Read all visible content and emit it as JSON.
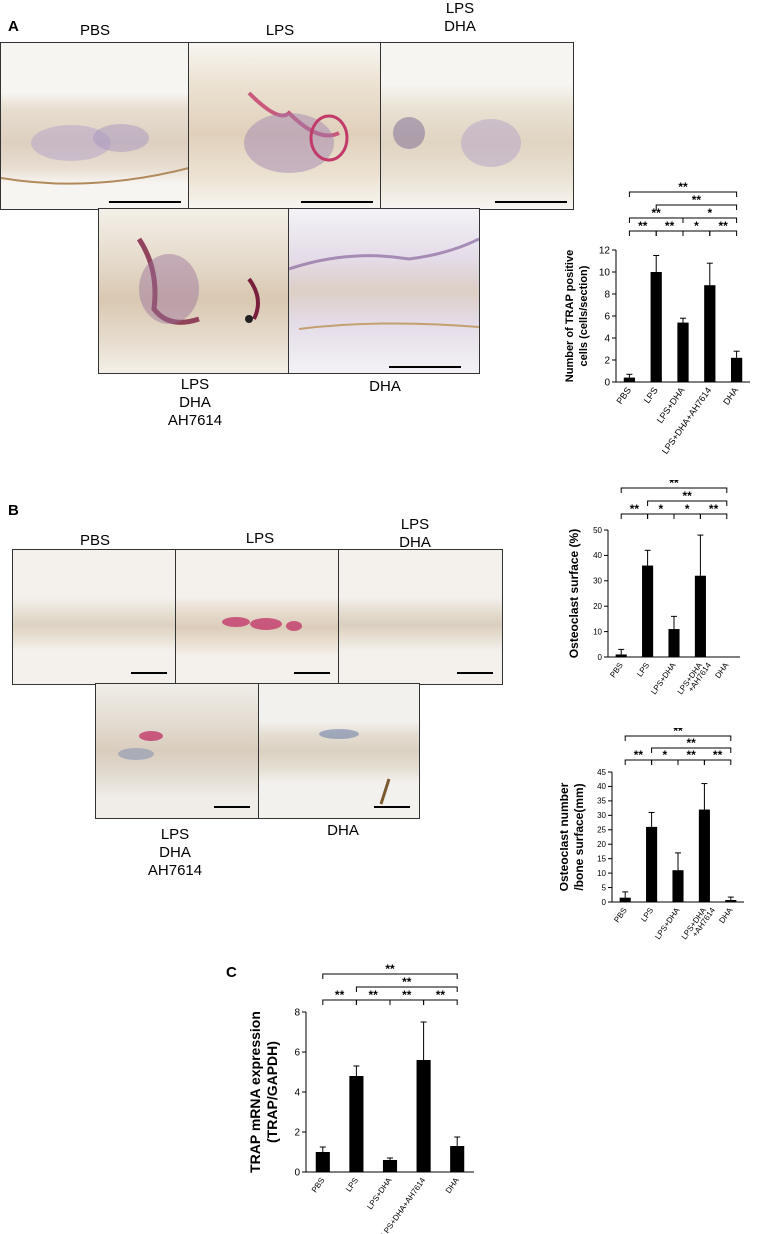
{
  "panels": {
    "A": {
      "letter": "A",
      "labels": {
        "pbs": "PBS",
        "lps": "LPS",
        "lps_dha": [
          "LPS",
          "DHA"
        ],
        "lps_dha_ah": [
          "LPS",
          "DHA",
          "AH7614"
        ],
        "dha": "DHA"
      }
    },
    "B": {
      "letter": "B",
      "labels": {
        "pbs": "PBS",
        "lps": "LPS",
        "lps_dha": [
          "LPS",
          "DHA"
        ],
        "lps_dha_ah": [
          "LPS",
          "DHA",
          "AH7614"
        ],
        "dha": "DHA"
      }
    },
    "C": {
      "letter": "C"
    }
  },
  "colors": {
    "bar": "#000000",
    "tissue": "#d8cbb8",
    "stain_pink": "#c23a6a",
    "stain_purple": "#8a6a9e"
  },
  "chart_data": [
    {
      "id": "chartA",
      "type": "bar",
      "ylabel": "Number of TRAP positive cells (cells/section)",
      "ylabel_lines": [
        "Number of TRAP positive",
        "cells (cells/section)"
      ],
      "categories": [
        "PBS",
        "LPS",
        "LPS+DHA",
        "LPS+DHA+AH7614",
        "DHA"
      ],
      "category_lines": [
        [
          "PBS"
        ],
        [
          "LPS"
        ],
        [
          "LPS+DHA"
        ],
        [
          "LPS+DHA+AH7614"
        ],
        [
          "DHA"
        ]
      ],
      "values": [
        0.4,
        10.0,
        5.4,
        8.8,
        2.2
      ],
      "errors": [
        0.3,
        1.5,
        0.4,
        2.0,
        0.6
      ],
      "ylim": [
        0,
        12
      ],
      "yticks": [
        0,
        2,
        4,
        6,
        8,
        10,
        12
      ],
      "significance": [
        {
          "from": 0,
          "to": 4,
          "label": "**",
          "level": 3
        },
        {
          "from": 1,
          "to": 4,
          "label": "**",
          "level": 2
        },
        {
          "from": 0,
          "to": 2,
          "label": "**",
          "level": 1
        },
        {
          "from": 2,
          "to": 4,
          "label": "*",
          "level": 1
        },
        {
          "from": 0,
          "to": 1,
          "label": "**",
          "level": 0
        },
        {
          "from": 1,
          "to": 2,
          "label": "**",
          "level": 0
        },
        {
          "from": 2,
          "to": 3,
          "label": "*",
          "level": 0
        },
        {
          "from": 3,
          "to": 4,
          "label": "**",
          "level": 0
        }
      ]
    },
    {
      "id": "chartB1",
      "type": "bar",
      "ylabel": "Osteoclast surface (%)",
      "ylabel_lines": [
        "Osteoclast surface (%)"
      ],
      "categories": [
        "PBS",
        "LPS",
        "LPS+DHA",
        "LPS+DHA +AH7614",
        "DHA"
      ],
      "category_lines": [
        [
          "PBS"
        ],
        [
          "LPS"
        ],
        [
          "LPS+DHA"
        ],
        [
          "LPS+DHA",
          "+AH7614"
        ],
        [
          "DHA"
        ]
      ],
      "values": [
        1,
        36,
        11,
        32,
        0
      ],
      "errors": [
        2,
        6,
        5,
        16,
        0
      ],
      "ylim": [
        0,
        50
      ],
      "yticks": [
        0,
        10,
        20,
        30,
        40,
        50
      ],
      "significance": [
        {
          "from": 0,
          "to": 4,
          "label": "**",
          "level": 2
        },
        {
          "from": 1,
          "to": 4,
          "label": "**",
          "level": 1
        },
        {
          "from": 0,
          "to": 1,
          "label": "**",
          "level": 0
        },
        {
          "from": 1,
          "to": 2,
          "label": "*",
          "level": 0
        },
        {
          "from": 2,
          "to": 3,
          "label": "*",
          "level": 0
        },
        {
          "from": 3,
          "to": 4,
          "label": "**",
          "level": 0
        }
      ]
    },
    {
      "id": "chartB2",
      "type": "bar",
      "ylabel": "Osteoclast number /bone surface(mm)",
      "ylabel_lines": [
        "Osteoclast number",
        "/bone surface(mm)"
      ],
      "categories": [
        "PBS",
        "LPS",
        "LPS+DHA",
        "LPS+DHA +AH7614",
        "DHA"
      ],
      "category_lines": [
        [
          "PBS"
        ],
        [
          "LPS"
        ],
        [
          "LPS+DHA"
        ],
        [
          "LPS+DHA",
          "+AH7614"
        ],
        [
          "DHA"
        ]
      ],
      "values": [
        1.5,
        26,
        11,
        32,
        0.7
      ],
      "errors": [
        2,
        5,
        6,
        9,
        1
      ],
      "ylim": [
        0,
        45
      ],
      "yticks": [
        0,
        5,
        10,
        15,
        20,
        25,
        30,
        35,
        40,
        45
      ],
      "significance": [
        {
          "from": 0,
          "to": 4,
          "label": "**",
          "level": 2
        },
        {
          "from": 1,
          "to": 4,
          "label": "**",
          "level": 1
        },
        {
          "from": 0,
          "to": 1,
          "label": "**",
          "level": 0
        },
        {
          "from": 1,
          "to": 2,
          "label": "*",
          "level": 0
        },
        {
          "from": 2,
          "to": 3,
          "label": "**",
          "level": 0
        },
        {
          "from": 3,
          "to": 4,
          "label": "**",
          "level": 0
        }
      ]
    },
    {
      "id": "chartC",
      "type": "bar",
      "ylabel": "TRAP mRNA expression (TRAP/GAPDH)",
      "ylabel_lines": [
        "TRAP mRNA expression",
        "(TRAP/GAPDH)"
      ],
      "categories": [
        "PBS",
        "LPS",
        "LPS+DHA",
        "LPS+DHA+AH7614",
        "DHA"
      ],
      "category_lines": [
        [
          "PBS"
        ],
        [
          "LPS"
        ],
        [
          "LPS+DHA"
        ],
        [
          "LPS+DHA+AH7614"
        ],
        [
          "DHA"
        ]
      ],
      "values": [
        1.0,
        4.8,
        0.6,
        5.6,
        1.3
      ],
      "errors": [
        0.25,
        0.5,
        0.1,
        1.9,
        0.45
      ],
      "ylim": [
        0,
        8
      ],
      "yticks": [
        0,
        2,
        4,
        6,
        8
      ],
      "significance": [
        {
          "from": 0,
          "to": 4,
          "label": "**",
          "level": 2
        },
        {
          "from": 1,
          "to": 4,
          "label": "**",
          "level": 1
        },
        {
          "from": 0,
          "to": 1,
          "label": "**",
          "level": 0
        },
        {
          "from": 1,
          "to": 2,
          "label": "**",
          "level": 0
        },
        {
          "from": 2,
          "to": 3,
          "label": "**",
          "level": 0
        },
        {
          "from": 3,
          "to": 4,
          "label": "**",
          "level": 0
        }
      ]
    }
  ]
}
